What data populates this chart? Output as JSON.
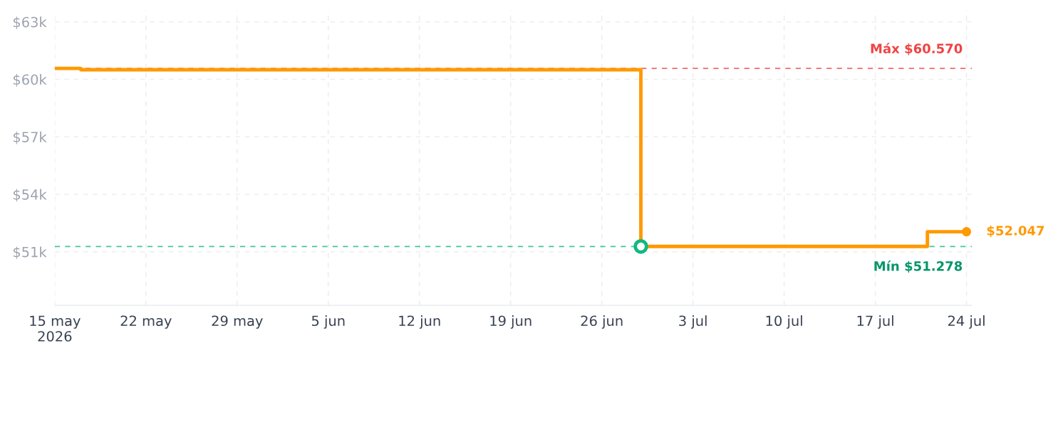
{
  "chart_data": {
    "type": "step",
    "xlim": [
      "2026-05-15",
      "2026-07-24T10:00"
    ],
    "ylim": [
      48200,
      63600
    ],
    "xticks": [
      {
        "value": "2026-05-15",
        "label": "15 may\n2026"
      },
      {
        "value": "2026-05-22",
        "label": "22 may"
      },
      {
        "value": "2026-05-29",
        "label": "29 may"
      },
      {
        "value": "2026-06-05",
        "label": "5 jun"
      },
      {
        "value": "2026-06-12",
        "label": "12 jun"
      },
      {
        "value": "2026-06-19",
        "label": "19 jun"
      },
      {
        "value": "2026-06-26",
        "label": "26 jun"
      },
      {
        "value": "2026-07-03",
        "label": "3 jul"
      },
      {
        "value": "2026-07-10",
        "label": "10 jul"
      },
      {
        "value": "2026-07-17",
        "label": "17 jul"
      },
      {
        "value": "2026-07-24",
        "label": "24 jul"
      }
    ],
    "yticks": [
      {
        "value": 51000,
        "label": "$51k"
      },
      {
        "value": 54000,
        "label": "$54k"
      },
      {
        "value": 57000,
        "label": "$57k"
      },
      {
        "value": 60000,
        "label": "$60k"
      },
      {
        "value": 63000,
        "label": "$63k"
      }
    ],
    "grid": true,
    "series": [
      {
        "color": "#ff9900",
        "x": [
          "2026-05-15",
          "2026-05-17",
          "2026-06-29",
          "2026-07-21",
          "2026-07-24"
        ],
        "values": [
          60570,
          60500,
          51278,
          52047,
          52047
        ]
      },
      {
        "type": "scatter",
        "color": "#10b981",
        "marker": "circle",
        "x": [
          "2026-06-29"
        ],
        "values": [
          51278
        ]
      },
      {
        "type": "scatter",
        "color": "#ff9900",
        "marker": "circle",
        "x": [
          "2026-07-24"
        ],
        "values": [
          52047
        ]
      }
    ],
    "ref_lines": [
      {
        "axis": "y",
        "value": 60570,
        "label": "Máx $60.570",
        "color": "#ef4444",
        "line_style": "dashed"
      },
      {
        "axis": "y",
        "value": 51278,
        "label": "Mín $51.278",
        "color": "#10b981",
        "line_style": "dashed"
      }
    ],
    "annotations": [
      {
        "text": "$52.047",
        "x": "2026-07-24",
        "y": 52047
      }
    ]
  }
}
